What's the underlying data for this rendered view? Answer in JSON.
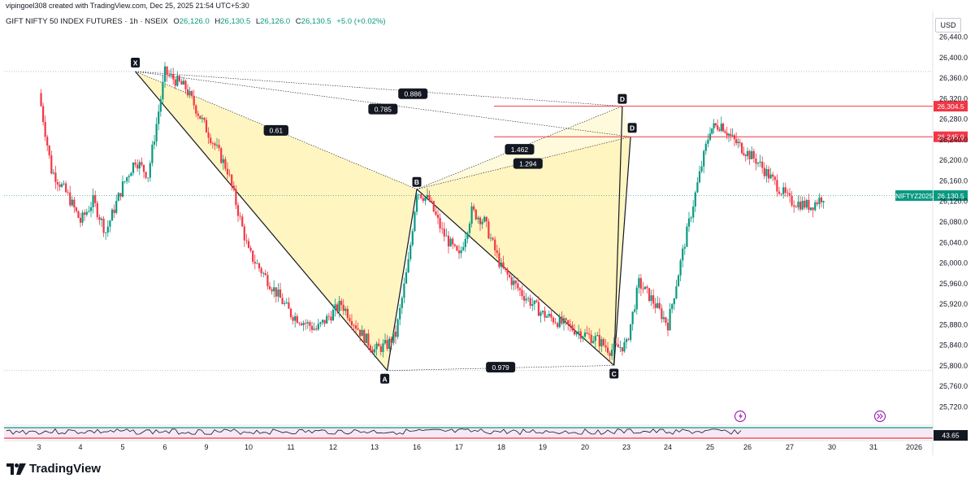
{
  "header": {
    "credit": "vipingoel308 created with TradingView.com, Dec 25, 2025 21:54 UTC+5:30",
    "title": "GIFT NIFTY 50 INDEX FUTURES · 1h · NSEIX",
    "open_label": "O",
    "open": "26,126.0",
    "high_label": "H",
    "high": "26,130.5",
    "low_label": "L",
    "low": "26,126.0",
    "close_label": "C",
    "close": "26,130.5",
    "change": "+5.0 (+0.02%)",
    "currency": "USD"
  },
  "branding": {
    "name": "TradingView"
  },
  "colors": {
    "up": "#089981",
    "down": "#f23645",
    "pattern_fill": "#fff3b0",
    "level_line": "#f23645",
    "last_price": "#089981",
    "rsi_line": "#131722"
  },
  "chart_data": {
    "type": "candlestick",
    "title": "GIFT NIFTY 50 INDEX FUTURES · 1h · NSEIX",
    "ylim": [
      25720,
      26460
    ],
    "price_ticks": [
      "26,440.0",
      "26,400.0",
      "26,360.0",
      "26,320.0",
      "26,280.0",
      "26,240.0",
      "26,200.0",
      "26,160.0",
      "26,120.0",
      "26,080.0",
      "26,040.0",
      "26,000.0",
      "25,960.0",
      "25,920.0",
      "25,880.0",
      "25,840.0",
      "25,800.0",
      "25,760.0",
      "25,720.0"
    ],
    "price_tick_values": [
      26440,
      26400,
      26360,
      26320,
      26280,
      26240,
      26200,
      26160,
      26120,
      26080,
      26040,
      26000,
      25960,
      25920,
      25880,
      25840,
      25800,
      25760,
      25720
    ],
    "time_ticks": [
      "3",
      "4",
      "5",
      "6",
      "9",
      "10",
      "11",
      "12",
      "13",
      "16",
      "17",
      "18",
      "19",
      "20",
      "23",
      "24",
      "25",
      "26",
      "27",
      "30",
      "31",
      "2026"
    ],
    "price_path": [
      [
        3,
        26330
      ],
      [
        3.3,
        26180
      ],
      [
        3.7,
        26130
      ],
      [
        4.0,
        26080
      ],
      [
        4.3,
        26120
      ],
      [
        4.6,
        26060
      ],
      [
        5.0,
        26150
      ],
      [
        5.3,
        26200
      ],
      [
        5.6,
        26170
      ],
      [
        6.0,
        26370
      ],
      [
        6.5,
        26340
      ],
      [
        7.0,
        26260
      ],
      [
        7.5,
        26180
      ],
      [
        8.0,
        26020
      ],
      [
        8.5,
        25960
      ],
      [
        9.0,
        25900
      ],
      [
        9.6,
        25870
      ],
      [
        10.2,
        25920
      ],
      [
        10.7,
        25860
      ],
      [
        11.0,
        25830
      ],
      [
        11.3,
        25840
      ],
      [
        11.5,
        25860
      ],
      [
        11.8,
        26000
      ],
      [
        12.0,
        26140
      ],
      [
        12.3,
        26120
      ],
      [
        12.6,
        26060
      ],
      [
        13.0,
        26010
      ],
      [
        13.3,
        26100
      ],
      [
        13.6,
        26080
      ],
      [
        14.0,
        25990
      ],
      [
        14.5,
        25940
      ],
      [
        15.0,
        25900
      ],
      [
        15.5,
        25880
      ],
      [
        16.0,
        25860
      ],
      [
        16.3,
        25850
      ],
      [
        16.6,
        25830
      ],
      [
        17.0,
        25840
      ],
      [
        17.3,
        25960
      ],
      [
        17.6,
        25930
      ],
      [
        18.0,
        25880
      ],
      [
        18.4,
        26040
      ],
      [
        18.8,
        26190
      ],
      [
        19.0,
        26260
      ],
      [
        19.3,
        26270
      ],
      [
        19.6,
        26240
      ],
      [
        19.9,
        26220
      ],
      [
        20.2,
        26200
      ],
      [
        20.6,
        26160
      ],
      [
        21.0,
        26120
      ],
      [
        21.5,
        26110
      ],
      [
        21.8,
        26130
      ]
    ],
    "harmonic_pattern": {
      "points": [
        {
          "label": "X",
          "time": 5.3,
          "price": 26372
        },
        {
          "label": "A",
          "time": 11.3,
          "price": 25790
        },
        {
          "label": "B",
          "time": 12.0,
          "price": 26143
        },
        {
          "label": "C",
          "time": 16.7,
          "price": 25800
        },
        {
          "label": "D",
          "time": 16.9,
          "price": 26304.5
        },
        {
          "label": "D",
          "time": 17.1,
          "price": 26245
        }
      ],
      "ratios": [
        "0.886",
        "0.785",
        "0.61",
        "1.462",
        "1.294",
        "0.979"
      ]
    },
    "levels": [
      {
        "label": "26,304.5",
        "value": 26304.5
      },
      {
        "label": "26,245.0",
        "value": 26245.0
      }
    ],
    "last_price": {
      "symbol": "NIFTYZ2025",
      "label": "26,130.5",
      "value": 26130.5
    },
    "rsi": {
      "value_label": "43.65",
      "value": 43.65
    }
  }
}
